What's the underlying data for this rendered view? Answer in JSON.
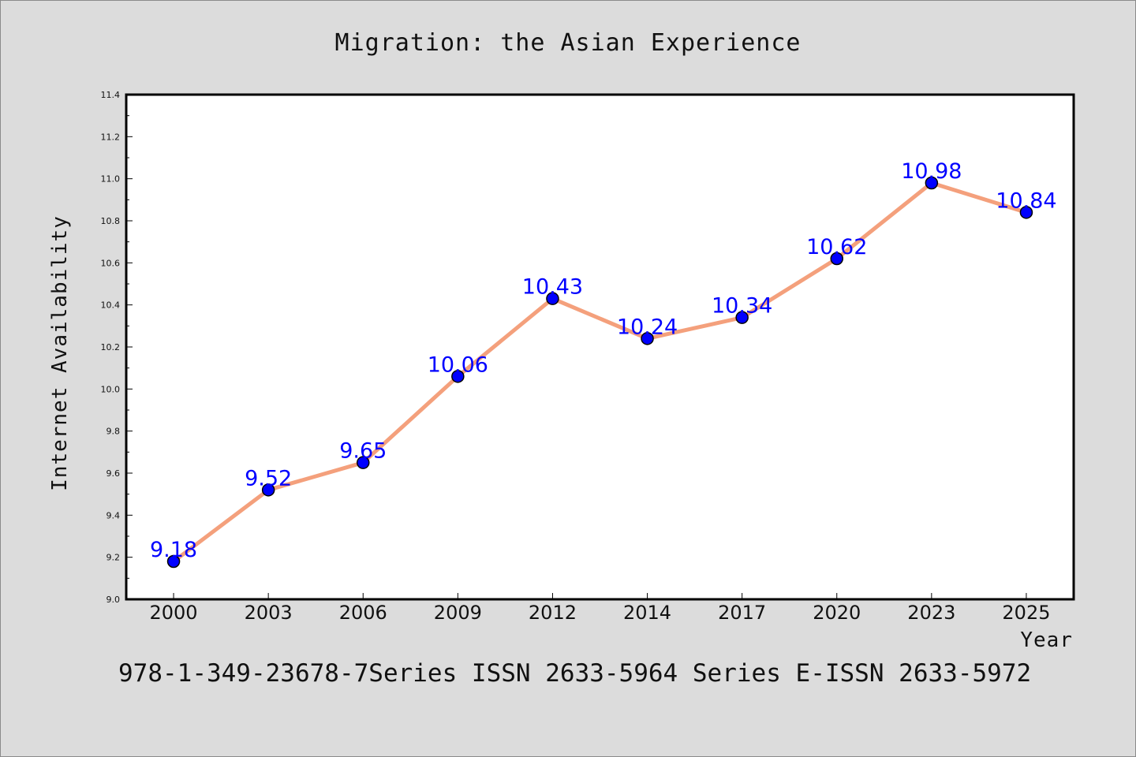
{
  "chart_data": {
    "type": "line",
    "title": "Migration: the Asian Experience",
    "xlabel": "Year",
    "ylabel": "Internet Availability",
    "categories": [
      "2000",
      "2003",
      "2006",
      "2009",
      "2012",
      "2014",
      "2017",
      "2020",
      "2023",
      "2025"
    ],
    "values": [
      9.18,
      9.52,
      9.65,
      10.06,
      10.43,
      10.24,
      10.34,
      10.62,
      10.98,
      10.84
    ],
    "data_labels": [
      "9.18",
      "9.52",
      "9.65",
      "10.06",
      "10.43",
      "10.24",
      "10.34",
      "10.62",
      "10.98",
      "10.84"
    ],
    "ylim": [
      9.0,
      11.4
    ],
    "yticks": [
      "9.0",
      "9.2",
      "9.4",
      "9.6",
      "9.8",
      "10.0",
      "10.2",
      "10.4",
      "10.6",
      "10.8",
      "11.0",
      "11.2",
      "11.4"
    ],
    "grid": false,
    "line_color": "#f4a07c",
    "marker_color": "#0000ff",
    "label_color": "#0000ff"
  },
  "footer": "978-1-349-23678-7Series ISSN 2633-5964 Series E-ISSN 2633-5972"
}
